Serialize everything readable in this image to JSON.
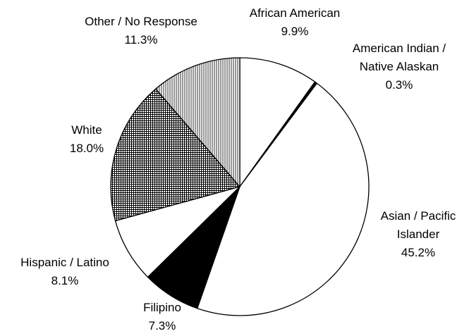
{
  "chart_data": {
    "type": "pie",
    "start_angle_deg": 0,
    "direction": "clockwise",
    "slices": [
      {
        "label": [
          "African American"
        ],
        "value": 9.9,
        "value_label": "9.9%",
        "fill": "white"
      },
      {
        "label": [
          "American Indian /",
          "Native Alaskan"
        ],
        "value": 0.3,
        "value_label": "0.3%",
        "fill": "black"
      },
      {
        "label": [
          "Asian / Pacific",
          "Islander"
        ],
        "value": 45.2,
        "value_label": "45.2%",
        "fill": "white"
      },
      {
        "label": [
          "Filipino"
        ],
        "value": 7.3,
        "value_label": "7.3%",
        "fill": "black"
      },
      {
        "label": [
          "Hispanic / Latino"
        ],
        "value": 8.1,
        "value_label": "8.1%",
        "fill": "white"
      },
      {
        "label": [
          "White"
        ],
        "value": 18.0,
        "value_label": "18.0%",
        "fill": "crosshatch"
      },
      {
        "label": [
          "Other / No Response"
        ],
        "value": 11.3,
        "value_label": "11.3%",
        "fill": "vertical-lines"
      }
    ]
  }
}
